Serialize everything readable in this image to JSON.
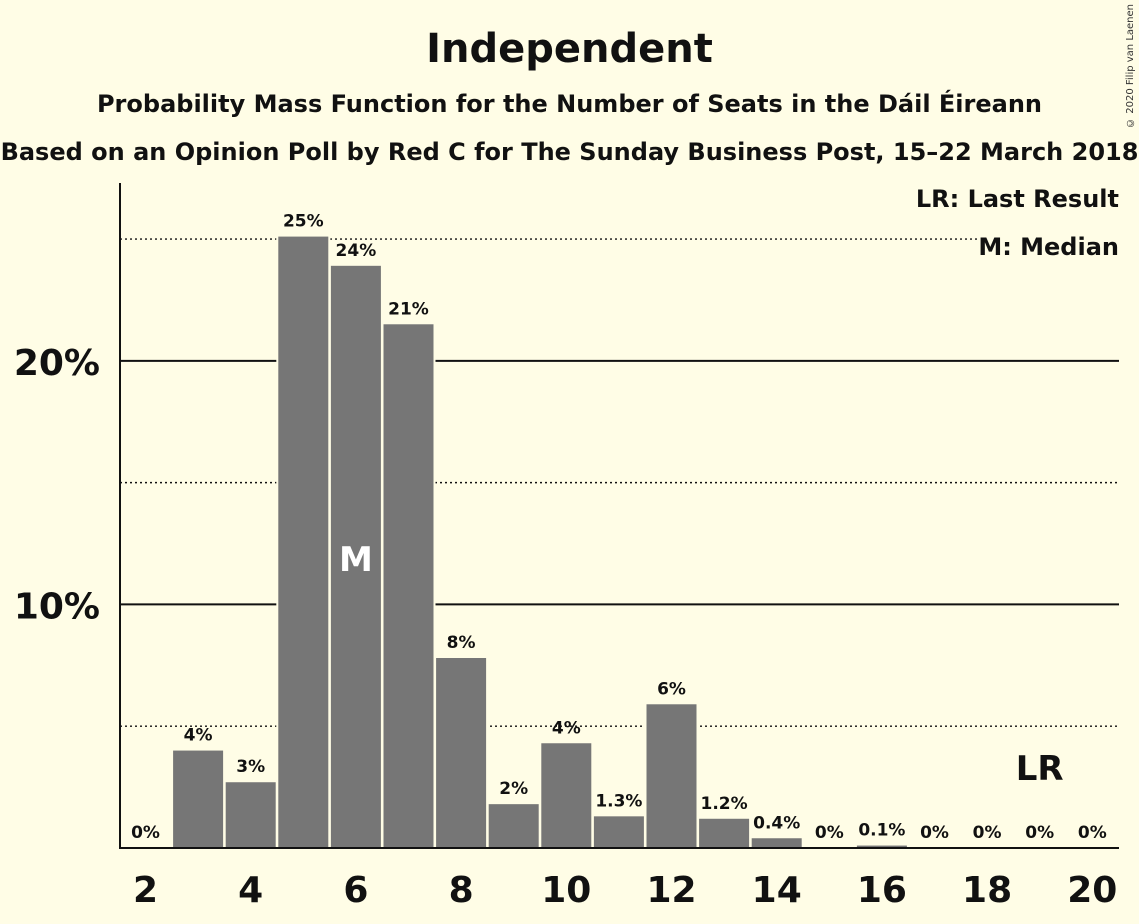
{
  "title": "Independent",
  "subtitle1": "Probability Mass Function for the Number of Seats in the Dáil Éireann",
  "subtitle2": "Based on an Opinion Poll by Red C for The Sunday Business Post, 15–22 March 2018",
  "copyright": "© 2020 Filip van Laenen",
  "legend": {
    "last_result": "LR: Last Result",
    "median": "M: Median"
  },
  "colors": {
    "background": "#fffde6",
    "bar": "#767676",
    "text": "#111111",
    "median_label": "#ffffff"
  },
  "chart_data": {
    "type": "bar",
    "x": [
      2,
      3,
      4,
      5,
      6,
      7,
      8,
      9,
      10,
      11,
      12,
      13,
      14,
      15,
      16,
      17,
      18,
      19,
      20
    ],
    "values": [
      0,
      4.0,
      2.7,
      25.1,
      23.9,
      21.5,
      7.8,
      1.8,
      4.3,
      1.3,
      5.9,
      1.2,
      0.4,
      0,
      0.1,
      0,
      0,
      0,
      0
    ],
    "data_labels": [
      "0%",
      "4%",
      "3%",
      "25%",
      "24%",
      "21%",
      "8%",
      "2%",
      "4%",
      "1.3%",
      "6%",
      "1.2%",
      "0.4%",
      "0%",
      "0.1%",
      "0%",
      "0%",
      "0%",
      "0%"
    ],
    "x_ticks": [
      2,
      4,
      6,
      8,
      10,
      12,
      14,
      16,
      18,
      20
    ],
    "y_ticks": [
      {
        "value": 10,
        "label": "10%"
      },
      {
        "value": 20,
        "label": "20%"
      }
    ],
    "y_dotted_gridlines": [
      5,
      15,
      25
    ],
    "ylim": [
      0,
      27.3
    ],
    "median": {
      "x": 6,
      "label": "M"
    },
    "last_result": {
      "x": 19,
      "label": "LR"
    },
    "grid": true,
    "legend_position": "top-right"
  }
}
